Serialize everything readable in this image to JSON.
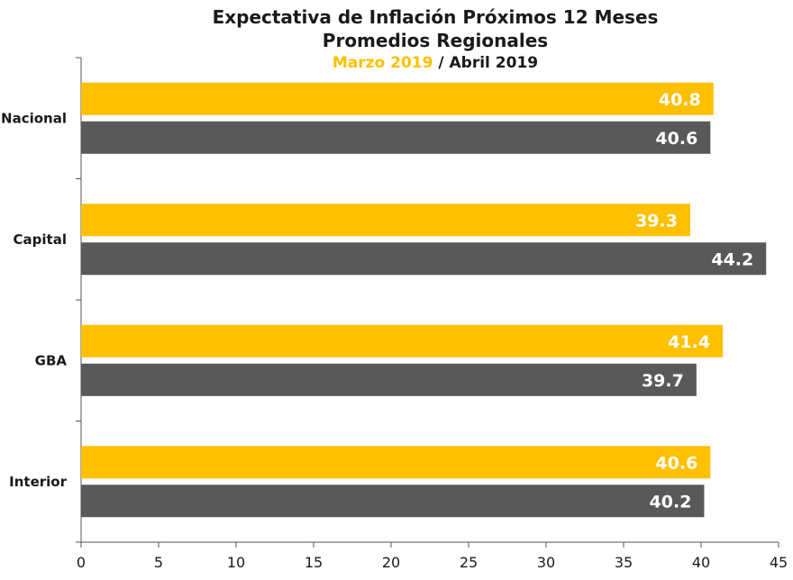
{
  "chart_data": {
    "type": "bar",
    "orientation": "horizontal",
    "title": "Expectativa de Inflación Próximos 12 Meses",
    "subtitle": "Promedios Regionales",
    "categories": [
      "Nacional",
      "Capital",
      "GBA",
      "Interior"
    ],
    "series": [
      {
        "name": "Marzo 2019",
        "values": [
          40.8,
          39.3,
          41.4,
          40.6
        ]
      },
      {
        "name": "Abril 2019",
        "values": [
          40.6,
          44.2,
          39.7,
          40.2
        ]
      }
    ],
    "legend_separator": "/",
    "xlim": [
      0,
      45
    ],
    "xticks": [
      0,
      5,
      10,
      15,
      20,
      25,
      30,
      35,
      40,
      45
    ],
    "grid": false,
    "legend_position": "top-center",
    "colors": {
      "Marzo 2019": "#FFC000",
      "Abril 2019": "#595959",
      "data_label": "#ffffff",
      "axis": "#555555"
    }
  }
}
